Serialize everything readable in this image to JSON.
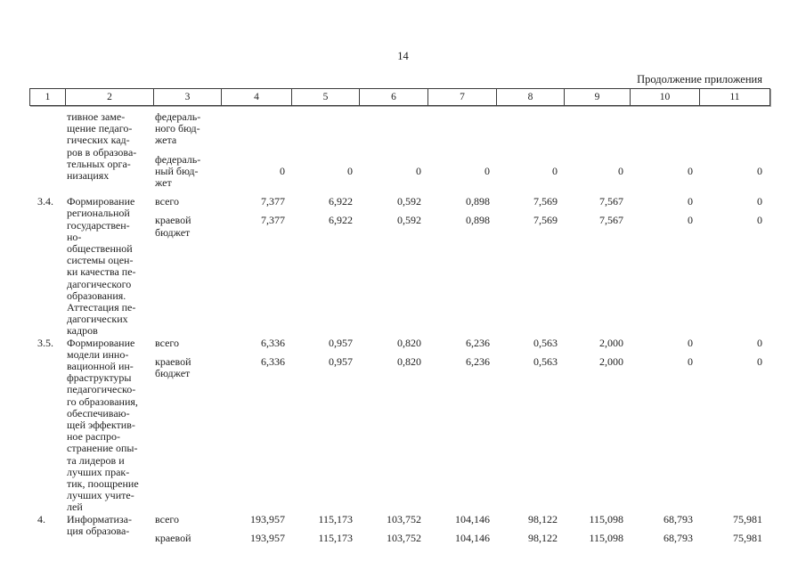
{
  "page": {
    "number": "14",
    "continuation_note": "Продолжение приложения"
  },
  "table": {
    "column_headers": [
      "1",
      "2",
      "3",
      "4",
      "5",
      "6",
      "7",
      "8",
      "9",
      "10",
      "11"
    ],
    "rows": [
      {
        "num": "",
        "title": "тивное заме-\nщение педаго-\nгических кад-\nров в образова-\nтельных орга-\nнизациях",
        "entries": [
          {
            "label": "федераль-\nного бюд-\nжета",
            "values": null
          },
          {
            "label": "федераль-\nный бюд-\nжет",
            "valign": "middle",
            "values": [
              "0",
              "0",
              "0",
              "0",
              "0",
              "0",
              "0",
              "0"
            ]
          }
        ]
      },
      {
        "num": "3.4.",
        "title": "Формирование\nрегиональной\nгосударствен-\nно-\nобщественной\nсистемы оцен-\nки качества пе-\nдагогического\nобразования.\nАттестация пе-\nдагогических\nкадров",
        "entries": [
          {
            "label": "всего",
            "values": [
              "7,377",
              "6,922",
              "0,592",
              "0,898",
              "7,569",
              "7,567",
              "0",
              "0"
            ]
          },
          {
            "label": "краевой\nбюджет",
            "values": [
              "7,377",
              "6,922",
              "0,592",
              "0,898",
              "7,569",
              "7,567",
              "0",
              "0"
            ]
          }
        ]
      },
      {
        "num": "3.5.",
        "title": "Формирование\nмодели инно-\nвационной ин-\nфраструктуры\nпедагогическо-\nго образования,\nобеспечиваю-\nщей эффектив-\nное распро-\nстранение опы-\nта лидеров и\nлучших прак-\nтик, поощрение\nлучших учите-\nлей",
        "entries": [
          {
            "label": "всего",
            "values": [
              "6,336",
              "0,957",
              "0,820",
              "6,236",
              "0,563",
              "2,000",
              "0",
              "0"
            ]
          },
          {
            "label": "краевой\nбюджет",
            "values": [
              "6,336",
              "0,957",
              "0,820",
              "6,236",
              "0,563",
              "2,000",
              "0",
              "0"
            ]
          }
        ]
      },
      {
        "num": "4.",
        "title": "Информатиза-\nция образова-",
        "entries": [
          {
            "label": "всего",
            "values": [
              "193,957",
              "115,173",
              "103,752",
              "104,146",
              "98,122",
              "115,098",
              "68,793",
              "75,981"
            ]
          },
          {
            "label": "краевой",
            "values": [
              "193,957",
              "115,173",
              "103,752",
              "104,146",
              "98,122",
              "115,098",
              "68,793",
              "75,981"
            ]
          }
        ]
      }
    ]
  }
}
